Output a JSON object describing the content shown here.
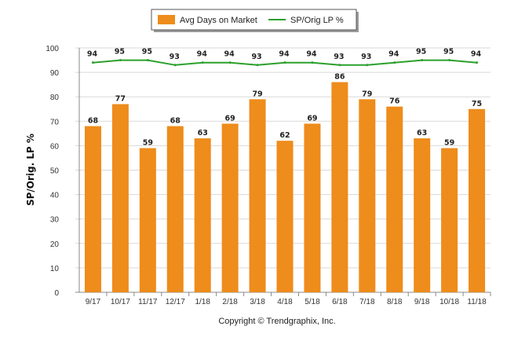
{
  "chart_data": {
    "type": "bar",
    "categories": [
      "9/17",
      "10/17",
      "11/17",
      "12/17",
      "1/18",
      "2/18",
      "3/18",
      "4/18",
      "5/18",
      "6/18",
      "7/18",
      "8/18",
      "9/18",
      "10/18",
      "11/18"
    ],
    "series": [
      {
        "name": "Avg Days on Market",
        "type": "bar",
        "color": "#ee8c1c",
        "values": [
          68,
          77,
          59,
          68,
          63,
          69,
          79,
          62,
          69,
          86,
          79,
          76,
          63,
          59,
          75
        ]
      },
      {
        "name": "SP/Orig LP %",
        "type": "line",
        "color": "#2ca02c",
        "values": [
          94,
          95,
          95,
          93,
          94,
          94,
          93,
          94,
          94,
          93,
          93,
          94,
          95,
          95,
          94
        ]
      }
    ],
    "ylabel": "SP/Orig. LP %",
    "xlabel": "",
    "ylim": [
      0,
      100
    ],
    "yticks": [
      0,
      10,
      20,
      30,
      40,
      50,
      60,
      70,
      80,
      90,
      100
    ],
    "grid": true,
    "legend_position": "top-center"
  },
  "legend": {
    "bar_label": "Avg Days on Market",
    "line_label": "SP/Orig LP %"
  },
  "footer": {
    "copyright": "Copyright © Trendgraphix, Inc."
  },
  "colors": {
    "bar": "#ee8c1c",
    "line": "#2ca02c",
    "grid": "#d9d9d9"
  }
}
